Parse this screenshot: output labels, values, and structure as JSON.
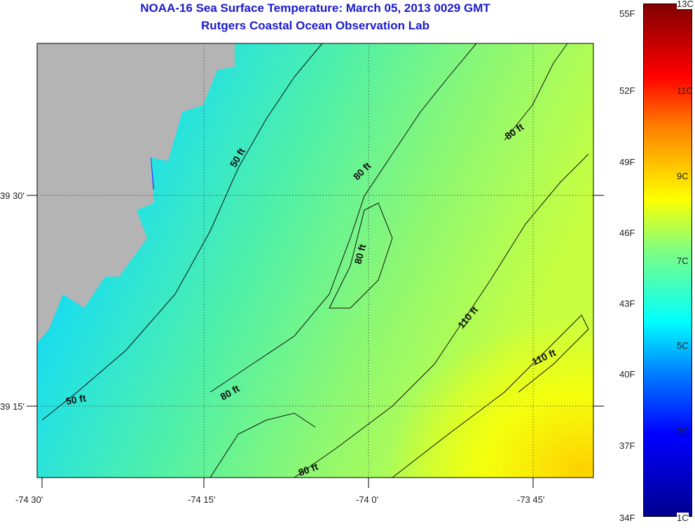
{
  "title": {
    "line1": "NOAA-16 Sea Surface Temperature:  March 05, 2013 0029 GMT",
    "line2": "Rutgers Coastal Ocean Observation Lab"
  },
  "axes": {
    "lon_labels": [
      "-74 30'",
      "-74 15'",
      "-74 0'",
      "-73 45'"
    ],
    "lat_labels": [
      "39 30'",
      "39 15'"
    ]
  },
  "contour_labels": [
    "50 ft",
    "50 ft",
    "80 ft",
    "80 ft",
    "80 ft",
    "80 ft",
    "80 ft",
    "110 ft",
    "110 ft"
  ],
  "colorbar": {
    "fahrenheit": [
      "55F",
      "52F",
      "49F",
      "46F",
      "43F",
      "40F",
      "37F",
      "34F"
    ],
    "celsius": [
      "13C",
      "11C",
      "9C",
      "7C",
      "5C",
      "3C",
      "1C"
    ],
    "range_c": [
      1,
      13
    ]
  },
  "colors": {
    "land": "#b4b4b4",
    "title": "#1a1acc"
  }
}
